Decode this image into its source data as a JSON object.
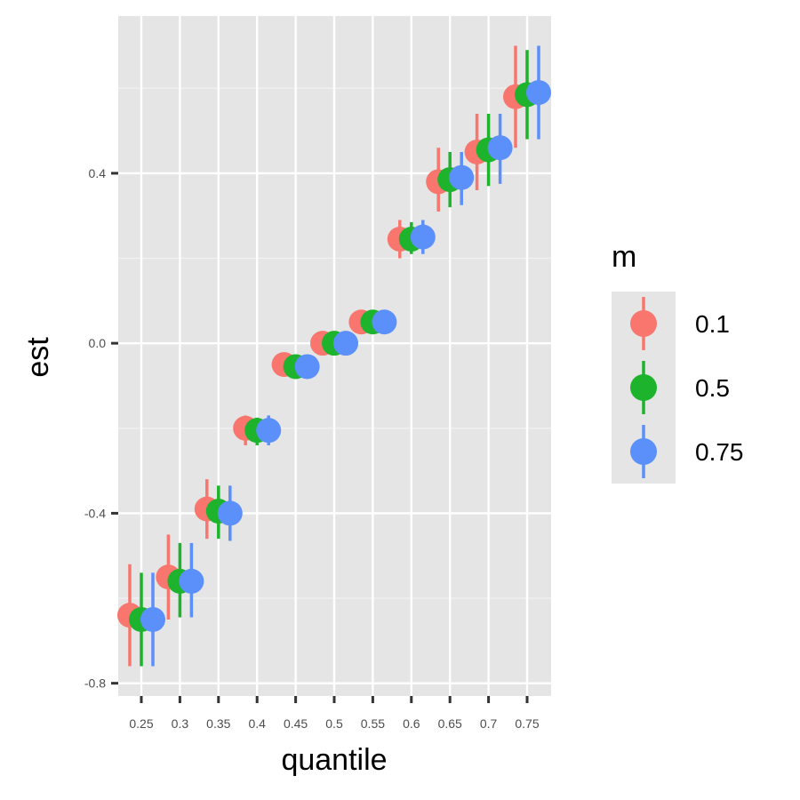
{
  "chart_data": {
    "type": "scatter",
    "subtype": "pointrange",
    "xlabel": "quantile",
    "ylabel": "est",
    "categories": [
      "0.25",
      "0.3",
      "0.35",
      "0.4",
      "0.45",
      "0.5",
      "0.55",
      "0.6",
      "0.65",
      "0.7",
      "0.75"
    ],
    "y_ticks": [
      -0.8,
      -0.4,
      0.0,
      0.4
    ],
    "y_tick_labels": [
      "-0.8",
      "-0.4",
      "0.0",
      "0.4"
    ],
    "ylim": [
      -0.83,
      0.77
    ],
    "grid": true,
    "legend": {
      "title": "m",
      "position": "right"
    },
    "series": [
      {
        "name": "0.1",
        "color": "#F8766D",
        "values": [
          -0.64,
          -0.55,
          -0.39,
          -0.2,
          -0.05,
          0.0,
          0.05,
          0.245,
          0.38,
          0.45,
          0.58
        ],
        "lower": [
          -0.76,
          -0.65,
          -0.46,
          -0.24,
          -0.07,
          -0.02,
          0.03,
          0.2,
          0.31,
          0.36,
          0.46
        ],
        "upper": [
          -0.52,
          -0.45,
          -0.32,
          -0.17,
          -0.03,
          0.02,
          0.07,
          0.29,
          0.46,
          0.54,
          0.7
        ]
      },
      {
        "name": "0.5",
        "color": "#1DB32C",
        "values": [
          -0.65,
          -0.56,
          -0.395,
          -0.205,
          -0.055,
          0.0,
          0.05,
          0.245,
          0.385,
          0.455,
          0.585
        ],
        "lower": [
          -0.76,
          -0.645,
          -0.46,
          -0.24,
          -0.075,
          -0.02,
          0.03,
          0.21,
          0.32,
          0.37,
          0.48
        ],
        "upper": [
          -0.54,
          -0.47,
          -0.335,
          -0.175,
          -0.035,
          0.02,
          0.07,
          0.285,
          0.45,
          0.54,
          0.69
        ]
      },
      {
        "name": "0.75",
        "color": "#5B8FF9",
        "values": [
          -0.65,
          -0.56,
          -0.4,
          -0.205,
          -0.055,
          0.0,
          0.05,
          0.25,
          0.39,
          0.46,
          0.59
        ],
        "lower": [
          -0.76,
          -0.645,
          -0.465,
          -0.24,
          -0.075,
          -0.02,
          0.03,
          0.21,
          0.325,
          0.375,
          0.48
        ],
        "upper": [
          -0.54,
          -0.47,
          -0.335,
          -0.17,
          -0.035,
          0.02,
          0.07,
          0.29,
          0.45,
          0.54,
          0.7
        ]
      }
    ]
  }
}
